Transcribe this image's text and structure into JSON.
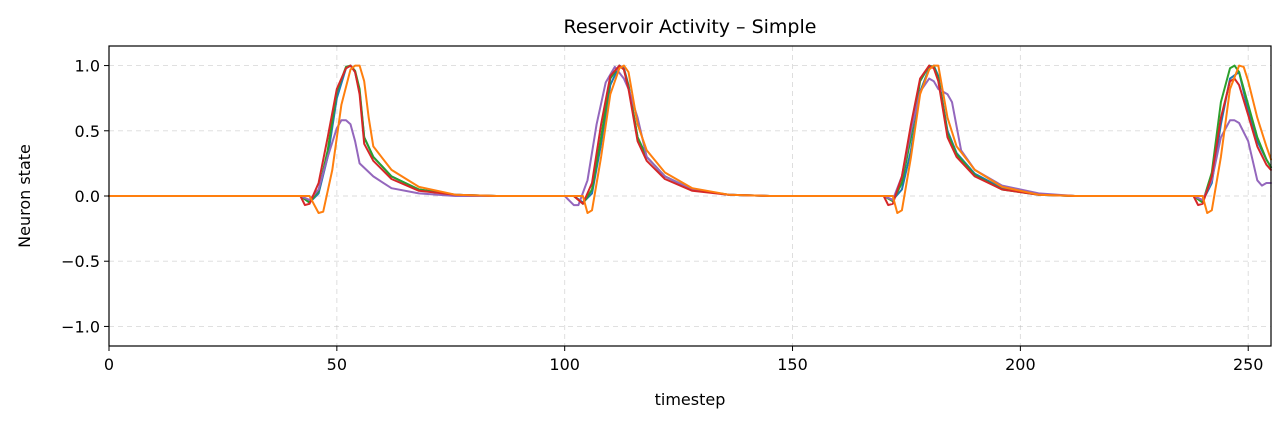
{
  "chart_data": {
    "type": "line",
    "title": "Reservoir Activity – Simple",
    "xlabel": "timestep",
    "ylabel": "Neuron state",
    "xlim": [
      0,
      255
    ],
    "ylim": [
      -1.15,
      1.15
    ],
    "xticks": [
      0,
      50,
      100,
      150,
      200,
      250
    ],
    "yticks": [
      1.0,
      0.5,
      0.0,
      -0.5,
      -1.0
    ],
    "ytick_labels": [
      "1.0",
      "0.5",
      "0.0",
      "−0.5",
      "−1.0"
    ],
    "grid": true,
    "pulse_centers": [
      53,
      113,
      181,
      247
    ],
    "series": [
      {
        "color": "#1f77b4",
        "points": [
          [
            0,
            0
          ],
          [
            42,
            0
          ],
          [
            44,
            -0.05
          ],
          [
            46,
            0.02
          ],
          [
            48,
            0.3
          ],
          [
            50,
            0.75
          ],
          [
            52,
            0.98
          ],
          [
            53,
            1.0
          ],
          [
            54,
            0.95
          ],
          [
            55,
            0.8
          ],
          [
            56,
            0.45
          ],
          [
            58,
            0.3
          ],
          [
            62,
            0.15
          ],
          [
            68,
            0.05
          ],
          [
            76,
            0.01
          ],
          [
            85,
            0
          ],
          [
            102,
            0
          ],
          [
            104,
            -0.05
          ],
          [
            106,
            0.02
          ],
          [
            108,
            0.4
          ],
          [
            110,
            0.85
          ],
          [
            112,
            1.0
          ],
          [
            113,
            0.98
          ],
          [
            114,
            0.85
          ],
          [
            116,
            0.45
          ],
          [
            118,
            0.3
          ],
          [
            122,
            0.15
          ],
          [
            128,
            0.05
          ],
          [
            136,
            0.01
          ],
          [
            145,
            0
          ],
          [
            170,
            0
          ],
          [
            172,
            -0.03
          ],
          [
            174,
            0.05
          ],
          [
            176,
            0.35
          ],
          [
            178,
            0.8
          ],
          [
            180,
            0.98
          ],
          [
            181,
            1.0
          ],
          [
            182,
            0.92
          ],
          [
            184,
            0.5
          ],
          [
            186,
            0.33
          ],
          [
            190,
            0.17
          ],
          [
            196,
            0.06
          ],
          [
            204,
            0.01
          ],
          [
            212,
            0
          ],
          [
            238,
            0
          ],
          [
            240,
            -0.04
          ],
          [
            242,
            0.1
          ],
          [
            244,
            0.55
          ],
          [
            246,
            0.9
          ],
          [
            248,
            0.95
          ],
          [
            250,
            0.65
          ],
          [
            252,
            0.42
          ],
          [
            254,
            0.28
          ],
          [
            255,
            0.22
          ]
        ]
      },
      {
        "color": "#2ca02c",
        "points": [
          [
            0,
            0
          ],
          [
            42,
            0
          ],
          [
            44,
            -0.05
          ],
          [
            46,
            0.04
          ],
          [
            48,
            0.35
          ],
          [
            50,
            0.8
          ],
          [
            52,
            0.99
          ],
          [
            53,
            1.0
          ],
          [
            54,
            0.96
          ],
          [
            55,
            0.82
          ],
          [
            56,
            0.45
          ],
          [
            58,
            0.3
          ],
          [
            62,
            0.15
          ],
          [
            68,
            0.05
          ],
          [
            76,
            0.01
          ],
          [
            85,
            0
          ],
          [
            102,
            0
          ],
          [
            104,
            -0.06
          ],
          [
            106,
            0.05
          ],
          [
            108,
            0.45
          ],
          [
            110,
            0.9
          ],
          [
            112,
            1.0
          ],
          [
            113,
            0.97
          ],
          [
            114,
            0.84
          ],
          [
            116,
            0.45
          ],
          [
            118,
            0.3
          ],
          [
            122,
            0.15
          ],
          [
            128,
            0.05
          ],
          [
            136,
            0.01
          ],
          [
            145,
            0
          ],
          [
            170,
            0
          ],
          [
            172,
            -0.04
          ],
          [
            174,
            0.1
          ],
          [
            176,
            0.45
          ],
          [
            178,
            0.88
          ],
          [
            180,
            1.0
          ],
          [
            181,
            0.99
          ],
          [
            182,
            0.9
          ],
          [
            184,
            0.48
          ],
          [
            186,
            0.32
          ],
          [
            190,
            0.16
          ],
          [
            196,
            0.05
          ],
          [
            204,
            0.01
          ],
          [
            212,
            0
          ],
          [
            238,
            0
          ],
          [
            240,
            -0.05
          ],
          [
            242,
            0.18
          ],
          [
            244,
            0.72
          ],
          [
            246,
            0.98
          ],
          [
            247,
            1.0
          ],
          [
            248,
            0.95
          ],
          [
            250,
            0.7
          ],
          [
            252,
            0.45
          ],
          [
            254,
            0.28
          ],
          [
            255,
            0.22
          ]
        ]
      },
      {
        "color": "#9467bd",
        "points": [
          [
            0,
            0
          ],
          [
            42,
            0
          ],
          [
            44,
            -0.03
          ],
          [
            46,
            0.05
          ],
          [
            48,
            0.3
          ],
          [
            50,
            0.52
          ],
          [
            51,
            0.58
          ],
          [
            52,
            0.58
          ],
          [
            53,
            0.55
          ],
          [
            54,
            0.42
          ],
          [
            55,
            0.25
          ],
          [
            58,
            0.15
          ],
          [
            62,
            0.06
          ],
          [
            68,
            0.02
          ],
          [
            76,
            0
          ],
          [
            100,
            0
          ],
          [
            102,
            -0.07
          ],
          [
            103,
            -0.07
          ],
          [
            105,
            0.12
          ],
          [
            107,
            0.55
          ],
          [
            109,
            0.87
          ],
          [
            111,
            0.99
          ],
          [
            113,
            0.9
          ],
          [
            114,
            0.82
          ],
          [
            116,
            0.6
          ],
          [
            118,
            0.3
          ],
          [
            122,
            0.15
          ],
          [
            128,
            0.05
          ],
          [
            136,
            0.01
          ],
          [
            145,
            0
          ],
          [
            170,
            0
          ],
          [
            172,
            -0.03
          ],
          [
            174,
            0.15
          ],
          [
            176,
            0.5
          ],
          [
            178,
            0.8
          ],
          [
            180,
            0.9
          ],
          [
            181,
            0.88
          ],
          [
            182,
            0.82
          ],
          [
            184,
            0.78
          ],
          [
            185,
            0.72
          ],
          [
            187,
            0.35
          ],
          [
            190,
            0.2
          ],
          [
            196,
            0.08
          ],
          [
            204,
            0.02
          ],
          [
            212,
            0
          ],
          [
            238,
            0
          ],
          [
            240,
            -0.03
          ],
          [
            242,
            0.12
          ],
          [
            244,
            0.45
          ],
          [
            246,
            0.58
          ],
          [
            247,
            0.58
          ],
          [
            248,
            0.56
          ],
          [
            250,
            0.42
          ],
          [
            252,
            0.12
          ],
          [
            253,
            0.08
          ],
          [
            254,
            0.1
          ],
          [
            255,
            0.1
          ]
        ]
      },
      {
        "color": "#d62728",
        "points": [
          [
            0,
            0
          ],
          [
            42,
            0
          ],
          [
            43,
            -0.07
          ],
          [
            44,
            -0.06
          ],
          [
            46,
            0.1
          ],
          [
            48,
            0.45
          ],
          [
            50,
            0.82
          ],
          [
            52,
            0.98
          ],
          [
            53,
            1.0
          ],
          [
            54,
            0.95
          ],
          [
            55,
            0.78
          ],
          [
            56,
            0.4
          ],
          [
            58,
            0.27
          ],
          [
            62,
            0.13
          ],
          [
            68,
            0.04
          ],
          [
            76,
            0.01
          ],
          [
            85,
            0
          ],
          [
            102,
            0
          ],
          [
            104,
            -0.06
          ],
          [
            106,
            0.1
          ],
          [
            108,
            0.55
          ],
          [
            110,
            0.92
          ],
          [
            112,
            1.0
          ],
          [
            113,
            0.97
          ],
          [
            114,
            0.82
          ],
          [
            116,
            0.42
          ],
          [
            118,
            0.27
          ],
          [
            122,
            0.13
          ],
          [
            128,
            0.04
          ],
          [
            136,
            0.01
          ],
          [
            145,
            0
          ],
          [
            170,
            0
          ],
          [
            171,
            -0.07
          ],
          [
            172,
            -0.06
          ],
          [
            174,
            0.15
          ],
          [
            176,
            0.55
          ],
          [
            178,
            0.9
          ],
          [
            180,
            1.0
          ],
          [
            181,
            0.98
          ],
          [
            182,
            0.88
          ],
          [
            184,
            0.45
          ],
          [
            186,
            0.3
          ],
          [
            190,
            0.15
          ],
          [
            196,
            0.05
          ],
          [
            204,
            0.01
          ],
          [
            212,
            0
          ],
          [
            238,
            0
          ],
          [
            239,
            -0.07
          ],
          [
            240,
            -0.06
          ],
          [
            242,
            0.15
          ],
          [
            244,
            0.6
          ],
          [
            246,
            0.88
          ],
          [
            247,
            0.9
          ],
          [
            248,
            0.85
          ],
          [
            250,
            0.62
          ],
          [
            252,
            0.38
          ],
          [
            254,
            0.24
          ],
          [
            255,
            0.2
          ]
        ]
      },
      {
        "color": "#ff7f0e",
        "points": [
          [
            0,
            0
          ],
          [
            44,
            0
          ],
          [
            46,
            -0.13
          ],
          [
            47,
            -0.12
          ],
          [
            49,
            0.2
          ],
          [
            51,
            0.7
          ],
          [
            53,
            0.97
          ],
          [
            54,
            1.0
          ],
          [
            55,
            1.0
          ],
          [
            56,
            0.88
          ],
          [
            57,
            0.6
          ],
          [
            58,
            0.38
          ],
          [
            62,
            0.2
          ],
          [
            68,
            0.07
          ],
          [
            76,
            0.01
          ],
          [
            85,
            0
          ],
          [
            104,
            0
          ],
          [
            105,
            -0.13
          ],
          [
            106,
            -0.11
          ],
          [
            108,
            0.3
          ],
          [
            110,
            0.78
          ],
          [
            112,
            0.98
          ],
          [
            113,
            1.0
          ],
          [
            114,
            0.95
          ],
          [
            116,
            0.55
          ],
          [
            118,
            0.35
          ],
          [
            122,
            0.18
          ],
          [
            128,
            0.06
          ],
          [
            136,
            0.01
          ],
          [
            145,
            0
          ],
          [
            172,
            0
          ],
          [
            173,
            -0.13
          ],
          [
            174,
            -0.11
          ],
          [
            176,
            0.3
          ],
          [
            178,
            0.78
          ],
          [
            180,
            0.97
          ],
          [
            181,
            1.0
          ],
          [
            182,
            1.0
          ],
          [
            184,
            0.6
          ],
          [
            186,
            0.38
          ],
          [
            190,
            0.2
          ],
          [
            196,
            0.07
          ],
          [
            204,
            0.01
          ],
          [
            212,
            0
          ],
          [
            240,
            0
          ],
          [
            241,
            -0.13
          ],
          [
            242,
            -0.11
          ],
          [
            244,
            0.3
          ],
          [
            246,
            0.82
          ],
          [
            248,
            1.0
          ],
          [
            249,
            0.99
          ],
          [
            250,
            0.88
          ],
          [
            252,
            0.6
          ],
          [
            254,
            0.38
          ],
          [
            255,
            0.28
          ]
        ]
      }
    ]
  }
}
